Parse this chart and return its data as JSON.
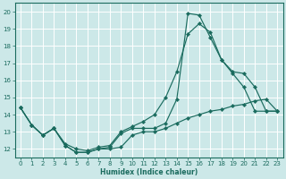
{
  "xlabel": "Humidex (Indice chaleur)",
  "bg_color": "#cce8e8",
  "grid_color": "#ffffff",
  "line_color": "#1a6b5e",
  "xlim": [
    -0.5,
    23.5
  ],
  "ylim": [
    11.5,
    20.5
  ],
  "xticks": [
    0,
    1,
    2,
    3,
    4,
    5,
    6,
    7,
    8,
    9,
    10,
    11,
    12,
    13,
    14,
    15,
    16,
    17,
    18,
    19,
    20,
    21,
    22,
    23
  ],
  "yticks": [
    12,
    13,
    14,
    15,
    16,
    17,
    18,
    19,
    20
  ],
  "line_spike_x": [
    0,
    1,
    2,
    3,
    4,
    5,
    6,
    7,
    8,
    9,
    10,
    11,
    12,
    13,
    14,
    15,
    16,
    17,
    18,
    19,
    20,
    21,
    22,
    23
  ],
  "line_spike_y": [
    14.4,
    13.4,
    12.8,
    13.2,
    12.2,
    11.8,
    11.8,
    12.0,
    12.1,
    12.9,
    13.2,
    13.2,
    13.2,
    13.5,
    14.9,
    19.9,
    19.8,
    18.5,
    17.2,
    16.4,
    15.6,
    14.2,
    14.2,
    14.2
  ],
  "line_mid_x": [
    0,
    1,
    2,
    3,
    4,
    5,
    6,
    7,
    8,
    9,
    10,
    11,
    12,
    13,
    14,
    15,
    16,
    17,
    18,
    19,
    20,
    21,
    22,
    23
  ],
  "line_mid_y": [
    14.4,
    13.4,
    12.8,
    13.2,
    12.3,
    12.0,
    11.9,
    12.1,
    12.2,
    13.0,
    13.3,
    13.6,
    14.0,
    15.0,
    16.5,
    18.7,
    19.3,
    18.8,
    17.2,
    16.5,
    16.4,
    15.6,
    14.2,
    14.2
  ],
  "line_flat_x": [
    0,
    1,
    2,
    3,
    4,
    5,
    6,
    7,
    8,
    9,
    10,
    11,
    12,
    13,
    14,
    15,
    16,
    17,
    18,
    19,
    20,
    21,
    22,
    23
  ],
  "line_flat_y": [
    14.4,
    13.4,
    12.8,
    13.2,
    12.2,
    11.8,
    11.8,
    12.0,
    12.0,
    12.1,
    12.8,
    13.0,
    13.0,
    13.2,
    13.5,
    13.8,
    14.0,
    14.2,
    14.3,
    14.5,
    14.6,
    14.8,
    14.9,
    14.2
  ]
}
